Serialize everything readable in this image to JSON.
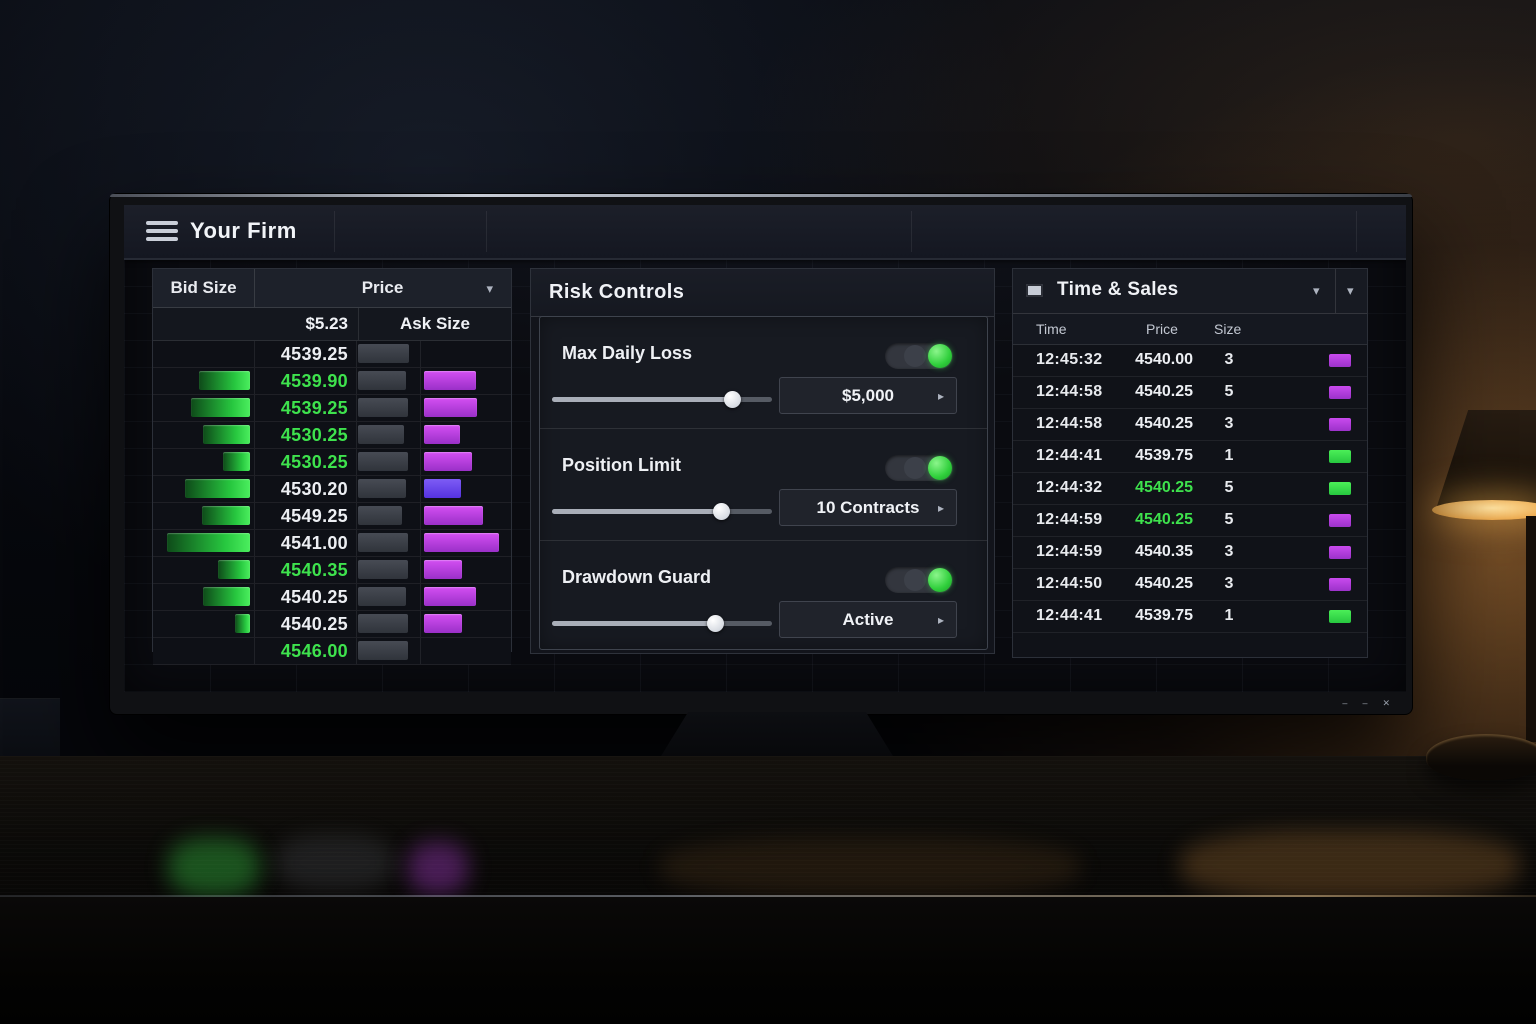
{
  "app": {
    "title": "Your Firm"
  },
  "icons": {
    "caret_down": "▾",
    "caret_right": "▸"
  },
  "monitor": {
    "buttons": [
      "–",
      "–",
      "✕"
    ]
  },
  "colors": {
    "white": "#edeff3",
    "green": "#3ee24d",
    "purple": "#c243ea",
    "violet": "#7449f0"
  },
  "ladder": {
    "columns": {
      "bid": "Bid Size",
      "price": "Price",
      "ask": "Ask Size"
    },
    "last_price": "$5.23",
    "rows": [
      {
        "bid": 0,
        "price": "4539.25",
        "tone": "white",
        "gray": 51,
        "ask": 0,
        "ask_tone": "purple"
      },
      {
        "bid": 51,
        "price": "4539.90",
        "tone": "green",
        "gray": 48,
        "ask": 52,
        "ask_tone": "purple"
      },
      {
        "bid": 59,
        "price": "4539.25",
        "tone": "green",
        "gray": 50,
        "ask": 53,
        "ask_tone": "purple"
      },
      {
        "bid": 47,
        "price": "4530.25",
        "tone": "green",
        "gray": 46,
        "ask": 36,
        "ask_tone": "purple"
      },
      {
        "bid": 27,
        "price": "4530.25",
        "tone": "green",
        "gray": 50,
        "ask": 48,
        "ask_tone": "purple"
      },
      {
        "bid": 65,
        "price": "4530.20",
        "tone": "white",
        "gray": 48,
        "ask": 37,
        "ask_tone": "violet"
      },
      {
        "bid": 48,
        "price": "4549.25",
        "tone": "white",
        "gray": 44,
        "ask": 59,
        "ask_tone": "purple"
      },
      {
        "bid": 83,
        "price": "4541.00",
        "tone": "white",
        "gray": 50,
        "ask": 75,
        "ask_tone": "purple"
      },
      {
        "bid": 32,
        "price": "4540.35",
        "tone": "green",
        "gray": 50,
        "ask": 38,
        "ask_tone": "purple"
      },
      {
        "bid": 47,
        "price": "4540.25",
        "tone": "white",
        "gray": 48,
        "ask": 52,
        "ask_tone": "purple"
      },
      {
        "bid": 15,
        "price": "4540.25",
        "tone": "white",
        "gray": 50,
        "ask": 38,
        "ask_tone": "purple"
      },
      {
        "bid": 0,
        "price": "4546.00",
        "tone": "green",
        "gray": 50,
        "ask": 0,
        "ask_tone": "purple"
      }
    ]
  },
  "risk": {
    "title": "Risk Controls",
    "sections": [
      {
        "label": "Max Daily Loss",
        "value": "$5,000",
        "toggle_on": true,
        "slider_pct": 82
      },
      {
        "label": "Position Limit",
        "value": "10 Contracts",
        "toggle_on": true,
        "slider_pct": 77
      },
      {
        "label": "Drawdown Guard",
        "value": "Active",
        "toggle_on": true,
        "slider_pct": 74
      }
    ]
  },
  "tns": {
    "title": "Time & Sales",
    "columns": [
      "Time",
      "Price",
      "Size"
    ],
    "rows": [
      {
        "time": "12:45:32",
        "price": "4540.00",
        "size": "3",
        "tone": "white",
        "swatch": "purple"
      },
      {
        "time": "12:44:58",
        "price": "4540.25",
        "size": "5",
        "tone": "white",
        "swatch": "purple"
      },
      {
        "time": "12:44:58",
        "price": "4540.25",
        "size": "3",
        "tone": "white",
        "swatch": "purple"
      },
      {
        "time": "12:44:41",
        "price": "4539.75",
        "size": "1",
        "tone": "white",
        "swatch": "green"
      },
      {
        "time": "12:44:32",
        "price": "4540.25",
        "size": "5",
        "tone": "green",
        "swatch": "green"
      },
      {
        "time": "12:44:59",
        "price": "4540.25",
        "size": "5",
        "tone": "green",
        "swatch": "purple"
      },
      {
        "time": "12:44:59",
        "price": "4540.35",
        "size": "3",
        "tone": "white",
        "swatch": "purple"
      },
      {
        "time": "12:44:50",
        "price": "4540.25",
        "size": "3",
        "tone": "white",
        "swatch": "purple"
      },
      {
        "time": "12:44:41",
        "price": "4539.75",
        "size": "1",
        "tone": "white",
        "swatch": "green"
      }
    ]
  }
}
